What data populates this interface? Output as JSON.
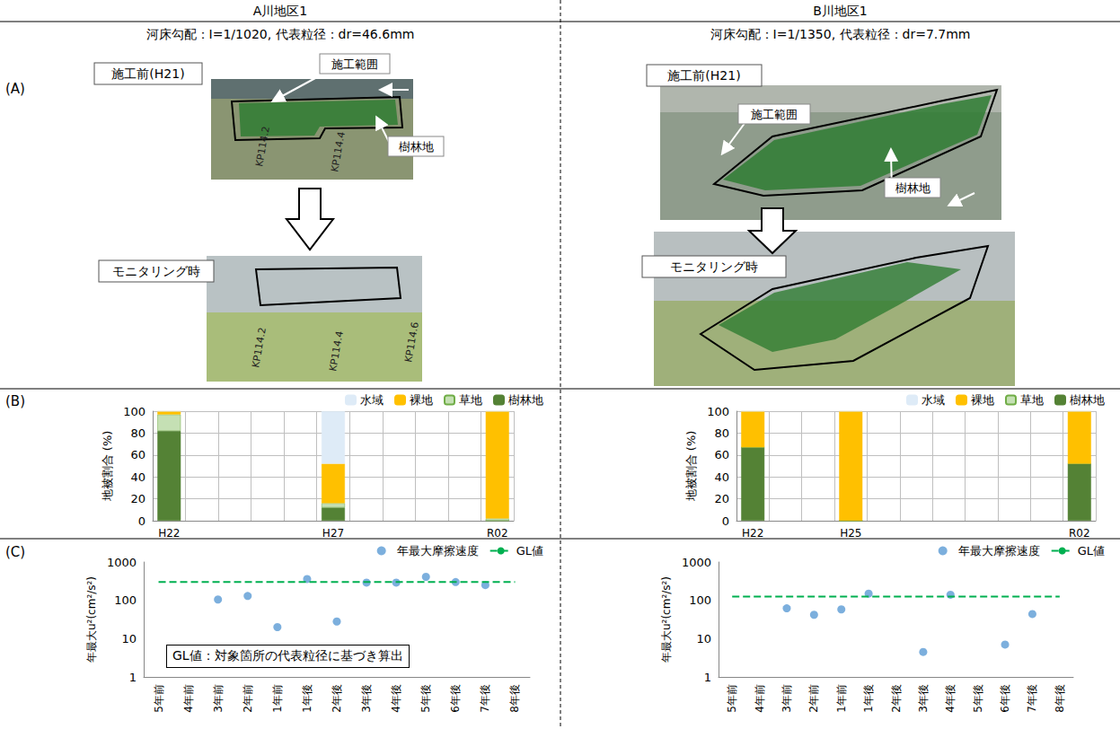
{
  "columns": [
    {
      "title": "A川地区1",
      "subtitle": "河床勾配：I=1/1020, 代表粒径：dr=46.6mm",
      "photos": {
        "before": "施工前(H21)",
        "after": "モニタリング時",
        "callouts": [
          "施工範囲",
          "樹林地"
        ],
        "kp_before": [
          "KP114.2",
          "KP114.4"
        ],
        "kp_after": [
          "KP114.2",
          "KP114.4",
          "KP114.6"
        ]
      }
    },
    {
      "title": "B川地区1",
      "subtitle": "河床勾配：I=1/1350, 代表粒径：dr=7.7mm",
      "photos": {
        "before": "施工前(H21)",
        "after": "モニタリング時",
        "callouts": [
          "施工範囲",
          "樹林地"
        ],
        "kp_before": [],
        "kp_after": []
      }
    }
  ],
  "row_labels": [
    "(A)",
    "(B)",
    "(C)"
  ],
  "chart_data": [
    {
      "type": "bar",
      "stacked": true,
      "grid": true,
      "legend": "upper right",
      "y_label": "地被割合 (%)",
      "categories": [
        "H22",
        null,
        null,
        null,
        null,
        "H27",
        null,
        null,
        null,
        null,
        "R02"
      ],
      "series": [
        {
          "name": "水域",
          "color": "#deebf7",
          "values": [
            0,
            null,
            null,
            null,
            null,
            48,
            null,
            null,
            null,
            null,
            0
          ]
        },
        {
          "name": "裸地",
          "color": "#ffc000",
          "values": [
            3,
            null,
            null,
            null,
            null,
            36,
            null,
            null,
            null,
            null,
            98
          ]
        },
        {
          "name": "草地",
          "color": "#c5e0b4",
          "values": [
            15,
            null,
            null,
            null,
            null,
            4,
            null,
            null,
            null,
            null,
            2
          ]
        },
        {
          "name": "樹林地",
          "color": "#548235",
          "values": [
            82,
            null,
            null,
            null,
            null,
            12,
            null,
            null,
            null,
            null,
            0
          ]
        }
      ],
      "ylim": [
        0,
        100
      ],
      "yticks": [
        0,
        20,
        40,
        60,
        80,
        100
      ]
    },
    {
      "type": "bar",
      "stacked": true,
      "grid": true,
      "legend": "upper right",
      "y_label": "地被割合 (%)",
      "categories": [
        "H22",
        null,
        null,
        "H25",
        null,
        null,
        null,
        null,
        null,
        null,
        "R02"
      ],
      "series": [
        {
          "name": "水域",
          "color": "#deebf7",
          "values": [
            0,
            null,
            null,
            0,
            null,
            null,
            null,
            null,
            null,
            null,
            0
          ]
        },
        {
          "name": "裸地",
          "color": "#ffc000",
          "values": [
            33,
            null,
            null,
            100,
            null,
            null,
            null,
            null,
            null,
            null,
            48
          ]
        },
        {
          "name": "草地",
          "color": "#c5e0b4",
          "values": [
            0,
            null,
            null,
            0,
            null,
            null,
            null,
            null,
            null,
            null,
            0
          ]
        },
        {
          "name": "樹林地",
          "color": "#548235",
          "values": [
            67,
            null,
            null,
            0,
            null,
            null,
            null,
            null,
            null,
            null,
            52
          ]
        }
      ],
      "ylim": [
        0,
        100
      ],
      "yticks": [
        0,
        20,
        40,
        60,
        80,
        100
      ]
    },
    {
      "type": "scatter",
      "log": "y",
      "grid": false,
      "legend": "upper right",
      "y_label": "年最大u²(cm²/s²)",
      "annotation": "GL値：対象箇所の代表粒径に基づき算出",
      "categories": [
        "5年前",
        "4年前",
        "3年前",
        "2年前",
        "1年前",
        "1年後",
        "2年後",
        "3年後",
        "4年後",
        "5年後",
        "6年後",
        "7年後",
        "8年後"
      ],
      "series": [
        {
          "name": "年最大摩擦速度",
          "type": "scatter",
          "marker": "circle",
          "color": "#5b9bd5",
          "values": [
            null,
            null,
            105,
            130,
            20,
            360,
            28,
            290,
            290,
            410,
            300,
            250,
            null
          ]
        },
        {
          "name": "GL値",
          "type": "line",
          "line_style": "dashed",
          "color": "#00b050",
          "values": [
            300,
            300,
            300,
            300,
            300,
            300,
            300,
            300,
            300,
            300,
            300,
            300,
            300
          ]
        }
      ],
      "ylim": [
        1,
        1000
      ],
      "yticks": [
        1,
        10,
        100,
        1000
      ]
    },
    {
      "type": "scatter",
      "log": "y",
      "grid": false,
      "legend": "upper right",
      "y_label": "年最大u²(cm²/s²)",
      "categories": [
        "5年前",
        "4年前",
        "3年前",
        "2年前",
        "1年前",
        "1年後",
        "2年後",
        "3年後",
        "4年後",
        "5年後",
        "6年後",
        "7年後",
        "8年後"
      ],
      "series": [
        {
          "name": "年最大摩擦速度",
          "type": "scatter",
          "marker": "circle",
          "color": "#5b9bd5",
          "values": [
            null,
            null,
            62,
            42,
            58,
            150,
            null,
            4.5,
            140,
            null,
            7,
            44,
            null
          ]
        },
        {
          "name": "GL値",
          "type": "line",
          "line_style": "dashed",
          "color": "#00b050",
          "values": [
            125,
            125,
            125,
            125,
            125,
            125,
            125,
            125,
            125,
            125,
            125,
            125,
            125
          ]
        }
      ],
      "ylim": [
        1,
        1000
      ],
      "yticks": [
        1,
        10,
        100,
        1000
      ]
    }
  ]
}
